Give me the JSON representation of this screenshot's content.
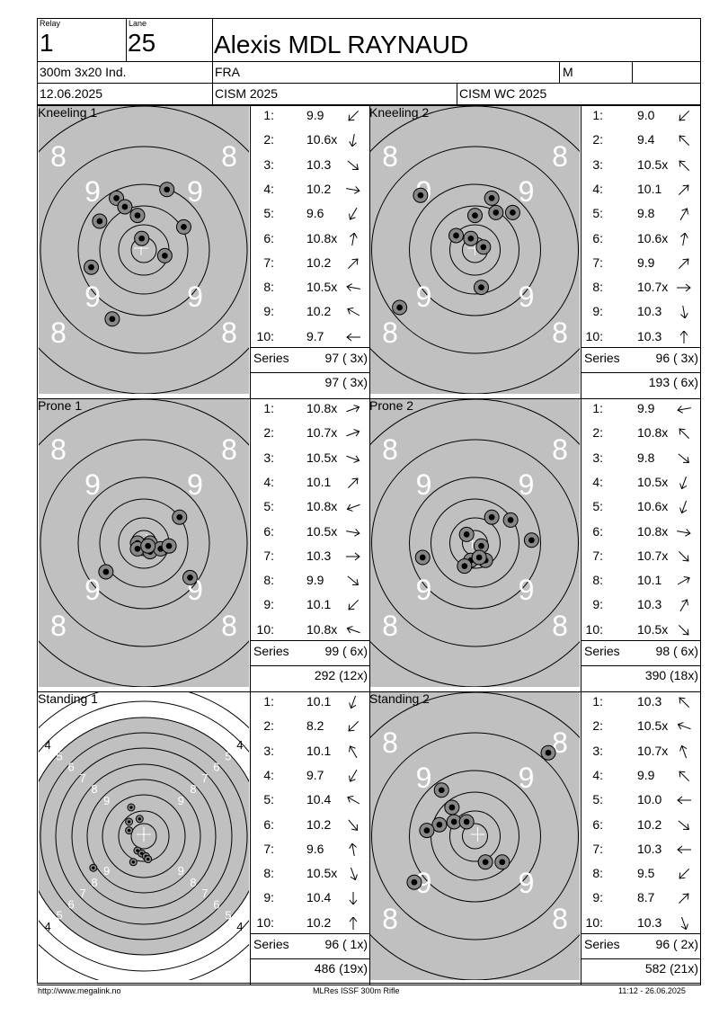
{
  "header": {
    "relay_label": "Relay",
    "relay_value": "1",
    "lane_label": "Lane",
    "lane_value": "25",
    "athlete_name": "Alexis MDL  RAYNAUD",
    "event": "300m 3x20 Ind.",
    "nation": "FRA",
    "gender": "M",
    "date": "12.06.2025",
    "competition": "CISM 2025",
    "match": "CISM WC 2025"
  },
  "series_label": "Series",
  "series": [
    {
      "title": "Kneeling 1",
      "target_type": "prone_kneeling",
      "ring_labels": {
        "outer": "8",
        "inner": "9"
      },
      "shots": [
        {
          "num": "1:",
          "value": "9.9",
          "dir": 225
        },
        {
          "num": "2:",
          "value": "10.6x",
          "dir": 260
        },
        {
          "num": "3:",
          "value": "10.3",
          "dir": 320
        },
        {
          "num": "4:",
          "value": "10.2",
          "dir": 350
        },
        {
          "num": "5:",
          "value": "9.6",
          "dir": 240
        },
        {
          "num": "6:",
          "value": "10.8x",
          "dir": 80
        },
        {
          "num": "7:",
          "value": "10.2",
          "dir": 45
        },
        {
          "num": "8:",
          "value": "10.5x",
          "dir": 170
        },
        {
          "num": "9:",
          "value": "10.2",
          "dir": 150
        },
        {
          "num": "10:",
          "value": "9.7",
          "dir": 180
        }
      ],
      "hits": [
        [
          0.47,
          0.38
        ],
        [
          0.37,
          0.32
        ],
        [
          0.41,
          0.35
        ],
        [
          0.61,
          0.29
        ],
        [
          0.29,
          0.4
        ],
        [
          0.49,
          0.46
        ],
        [
          0.69,
          0.42
        ],
        [
          0.6,
          0.52
        ],
        [
          0.25,
          0.56
        ],
        [
          0.35,
          0.74
        ]
      ],
      "series_total": "97 ( 3x)",
      "running_total": "97 ( 3x)"
    },
    {
      "title": "Kneeling 2",
      "target_type": "prone_kneeling",
      "ring_labels": {
        "outer": "8",
        "inner": "9"
      },
      "shots": [
        {
          "num": "1:",
          "value": "9.0",
          "dir": 225
        },
        {
          "num": "2:",
          "value": "9.4",
          "dir": 135
        },
        {
          "num": "3:",
          "value": "10.5x",
          "dir": 135
        },
        {
          "num": "4:",
          "value": "10.1",
          "dir": 45
        },
        {
          "num": "5:",
          "value": "9.8",
          "dir": 60
        },
        {
          "num": "6:",
          "value": "10.6x",
          "dir": 80
        },
        {
          "num": "7:",
          "value": "9.9",
          "dir": 45
        },
        {
          "num": "8:",
          "value": "10.7x",
          "dir": 0
        },
        {
          "num": "9:",
          "value": "10.3",
          "dir": 280
        },
        {
          "num": "10:",
          "value": "10.3",
          "dir": 90
        }
      ],
      "hits": [
        [
          0.24,
          0.31
        ],
        [
          0.58,
          0.32
        ],
        [
          0.5,
          0.38
        ],
        [
          0.6,
          0.37
        ],
        [
          0.68,
          0.37
        ],
        [
          0.41,
          0.45
        ],
        [
          0.48,
          0.46
        ],
        [
          0.54,
          0.49
        ],
        [
          0.53,
          0.63
        ],
        [
          0.14,
          0.7
        ]
      ],
      "series_total": "96 ( 3x)",
      "running_total": "193 ( 6x)"
    },
    {
      "title": "Prone 1",
      "target_type": "prone_kneeling",
      "ring_labels": {
        "outer": "8",
        "inner": "9"
      },
      "shots": [
        {
          "num": "1:",
          "value": "10.8x",
          "dir": 20
        },
        {
          "num": "2:",
          "value": "10.7x",
          "dir": 20
        },
        {
          "num": "3:",
          "value": "10.5x",
          "dir": 340
        },
        {
          "num": "4:",
          "value": "10.1",
          "dir": 45
        },
        {
          "num": "5:",
          "value": "10.8x",
          "dir": 200
        },
        {
          "num": "6:",
          "value": "10.5x",
          "dir": 350
        },
        {
          "num": "7:",
          "value": "10.3",
          "dir": 0
        },
        {
          "num": "8:",
          "value": "9.9",
          "dir": 320
        },
        {
          "num": "9:",
          "value": "10.1",
          "dir": 225
        },
        {
          "num": "10:",
          "value": "10.8x",
          "dir": 160
        }
      ],
      "hits": [
        [
          0.47,
          0.5
        ],
        [
          0.47,
          0.52
        ],
        [
          0.53,
          0.5
        ],
        [
          0.53,
          0.53
        ],
        [
          0.58,
          0.52
        ],
        [
          0.62,
          0.51
        ],
        [
          0.67,
          0.41
        ],
        [
          0.32,
          0.6
        ],
        [
          0.72,
          0.62
        ],
        [
          0.52,
          0.51
        ]
      ],
      "series_total": "99 ( 6x)",
      "running_total": "292 (12x)"
    },
    {
      "title": "Prone 2",
      "target_type": "prone_kneeling",
      "ring_labels": {
        "outer": "8",
        "inner": "9"
      },
      "shots": [
        {
          "num": "1:",
          "value": "9.9",
          "dir": 190
        },
        {
          "num": "2:",
          "value": "10.8x",
          "dir": 135
        },
        {
          "num": "3:",
          "value": "9.8",
          "dir": 320
        },
        {
          "num": "4:",
          "value": "10.5x",
          "dir": 250
        },
        {
          "num": "5:",
          "value": "10.6x",
          "dir": 250
        },
        {
          "num": "6:",
          "value": "10.8x",
          "dir": 350
        },
        {
          "num": "7:",
          "value": "10.7x",
          "dir": 315
        },
        {
          "num": "8:",
          "value": "10.1",
          "dir": 30
        },
        {
          "num": "9:",
          "value": "10.3",
          "dir": 60
        },
        {
          "num": "10:",
          "value": "10.5x",
          "dir": 315
        }
      ],
      "hits": [
        [
          0.58,
          0.41
        ],
        [
          0.67,
          0.42
        ],
        [
          0.46,
          0.47
        ],
        [
          0.53,
          0.51
        ],
        [
          0.77,
          0.49
        ],
        [
          0.25,
          0.55
        ],
        [
          0.48,
          0.56
        ],
        [
          0.55,
          0.56
        ],
        [
          0.52,
          0.55
        ],
        [
          0.45,
          0.58
        ]
      ],
      "series_total": "98 ( 6x)",
      "running_total": "390 (18x)"
    },
    {
      "title": "Standing 1",
      "target_type": "standing",
      "ring_labels": {
        "r4": "4",
        "r5": "5",
        "r6": "6",
        "r7": "7",
        "r8": "8",
        "r9": "9"
      },
      "shots": [
        {
          "num": "1:",
          "value": "10.1",
          "dir": 250
        },
        {
          "num": "2:",
          "value": "8.2",
          "dir": 225
        },
        {
          "num": "3:",
          "value": "10.1",
          "dir": 120
        },
        {
          "num": "4:",
          "value": "9.7",
          "dir": 240
        },
        {
          "num": "5:",
          "value": "10.4",
          "dir": 150
        },
        {
          "num": "6:",
          "value": "10.2",
          "dir": 310
        },
        {
          "num": "7:",
          "value": "9.6",
          "dir": 100
        },
        {
          "num": "8:",
          "value": "10.5x",
          "dir": 290
        },
        {
          "num": "9:",
          "value": "10.4",
          "dir": 270
        },
        {
          "num": "10:",
          "value": "10.2",
          "dir": 90
        }
      ],
      "hits": [
        [
          0.44,
          0.4
        ],
        [
          0.43,
          0.45
        ],
        [
          0.48,
          0.44
        ],
        [
          0.43,
          0.48
        ],
        [
          0.47,
          0.55
        ],
        [
          0.49,
          0.56
        ],
        [
          0.51,
          0.57
        ],
        [
          0.52,
          0.58
        ],
        [
          0.45,
          0.59
        ],
        [
          0.26,
          0.61
        ]
      ],
      "series_total": "96 ( 1x)",
      "running_total": "486 (19x)"
    },
    {
      "title": "Standing 2",
      "target_type": "prone_kneeling",
      "ring_labels": {
        "outer": "8",
        "inner": "9"
      },
      "shots": [
        {
          "num": "1:",
          "value": "10.3",
          "dir": 135
        },
        {
          "num": "2:",
          "value": "10.5x",
          "dir": 160
        },
        {
          "num": "3:",
          "value": "10.7x",
          "dir": 110
        },
        {
          "num": "4:",
          "value": "9.9",
          "dir": 135
        },
        {
          "num": "5:",
          "value": "10.0",
          "dir": 180
        },
        {
          "num": "6:",
          "value": "10.2",
          "dir": 320
        },
        {
          "num": "7:",
          "value": "10.3",
          "dir": 180
        },
        {
          "num": "8:",
          "value": "9.5",
          "dir": 225
        },
        {
          "num": "9:",
          "value": "8.7",
          "dir": 45
        },
        {
          "num": "10:",
          "value": "10.3",
          "dir": 290
        }
      ],
      "hits": [
        [
          0.85,
          0.21
        ],
        [
          0.34,
          0.34
        ],
        [
          0.39,
          0.4
        ],
        [
          0.33,
          0.46
        ],
        [
          0.4,
          0.45
        ],
        [
          0.46,
          0.45
        ],
        [
          0.27,
          0.48
        ],
        [
          0.55,
          0.59
        ],
        [
          0.63,
          0.59
        ],
        [
          0.21,
          0.66
        ]
      ],
      "series_total": "96 ( 2x)",
      "running_total": "582 (21x)"
    }
  ],
  "footer": {
    "url": "http://www.megalink.no",
    "software": "MLRes ISSF 300m Rifle",
    "timestamp": "11:12 - 26.06.2025"
  }
}
